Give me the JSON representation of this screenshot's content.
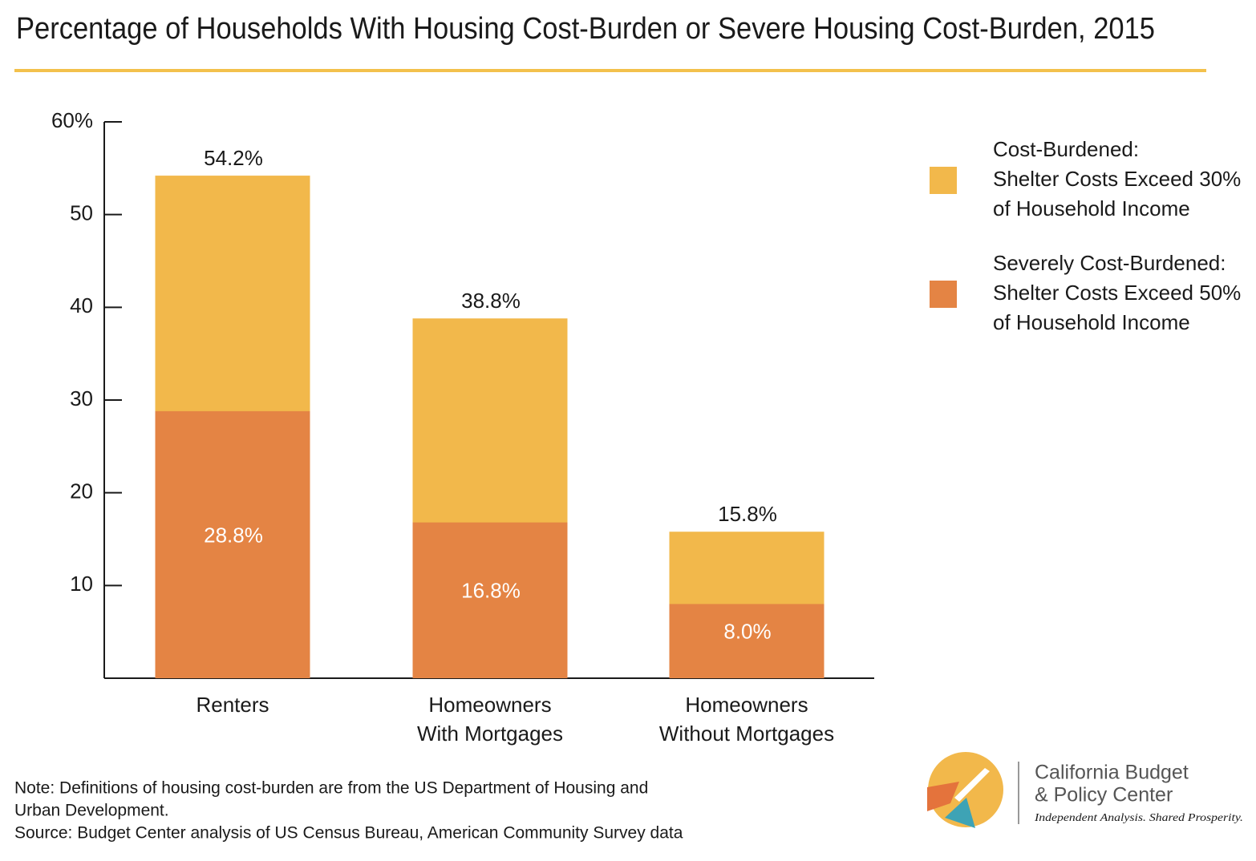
{
  "chart_data": {
    "type": "bar",
    "title": "Percentage of Households With Housing Cost-Burden or Severe Housing Cost-Burden, 2015",
    "categories": [
      [
        "Renters"
      ],
      [
        "Homeowners",
        "With Mortgages"
      ],
      [
        "Homeowners",
        "Without Mortgages"
      ]
    ],
    "series": [
      {
        "name": [
          "Cost-Burdened:",
          "Shelter Costs Exceed 30%",
          "of Household Income"
        ],
        "color": "#f2b84b",
        "values": [
          54.2,
          38.8,
          15.8
        ],
        "value_labels": [
          "54.2%",
          "38.8%",
          "15.8%"
        ]
      },
      {
        "name": [
          "Severely Cost-Burdened:",
          "Shelter Costs Exceed 50%",
          "of Household Income"
        ],
        "color": "#e48444",
        "values": [
          28.8,
          16.8,
          8.0
        ],
        "value_labels": [
          "28.8%",
          "16.8%",
          "8.0%"
        ]
      }
    ],
    "ylim": [
      0,
      60
    ],
    "yticks": [
      10,
      20,
      30,
      40,
      50,
      {
        "value": 60,
        "label": "60%"
      }
    ],
    "notes": [
      "Note: Definitions of housing cost-burden are from the US Department of Housing and",
      "Urban Development.",
      "Source: Budget Center analysis of US Census Bureau, American Community Survey data"
    ],
    "logo": [
      "California Budget",
      "& Policy Center",
      "Independent Analysis. Shared Prosperity."
    ]
  }
}
